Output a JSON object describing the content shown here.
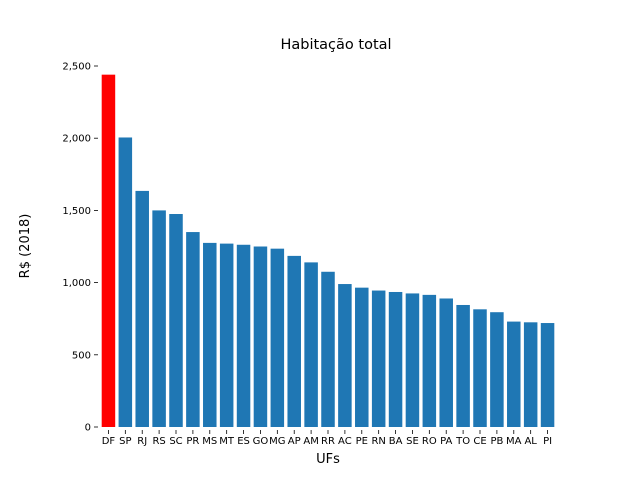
{
  "chart_data": {
    "type": "bar",
    "title": "Habitação total",
    "xlabel": "UFs",
    "ylabel": "R$ (2018)",
    "ylim": [
      0,
      2500
    ],
    "yticks": [
      0,
      500,
      1000,
      1500,
      2000,
      2500
    ],
    "ytick_labels": [
      "0",
      "500",
      "1,000",
      "1,500",
      "2,000",
      "2,500"
    ],
    "grid": false,
    "categories": [
      "DF",
      "SP",
      "RJ",
      "RS",
      "SC",
      "PR",
      "MS",
      "MT",
      "ES",
      "GO",
      "MG",
      "AP",
      "AM",
      "RR",
      "AC",
      "PE",
      "RN",
      "BA",
      "SE",
      "RO",
      "PA",
      "TO",
      "CE",
      "PB",
      "MA",
      "AL",
      "PI"
    ],
    "values": [
      2440,
      2005,
      1635,
      1500,
      1475,
      1350,
      1275,
      1270,
      1262,
      1250,
      1235,
      1185,
      1140,
      1075,
      990,
      965,
      945,
      935,
      925,
      915,
      890,
      845,
      815,
      795,
      730,
      725,
      720
    ],
    "colors": {
      "default": "#1f77b4",
      "highlight": "#ff0000"
    },
    "highlight_category": "DF"
  }
}
